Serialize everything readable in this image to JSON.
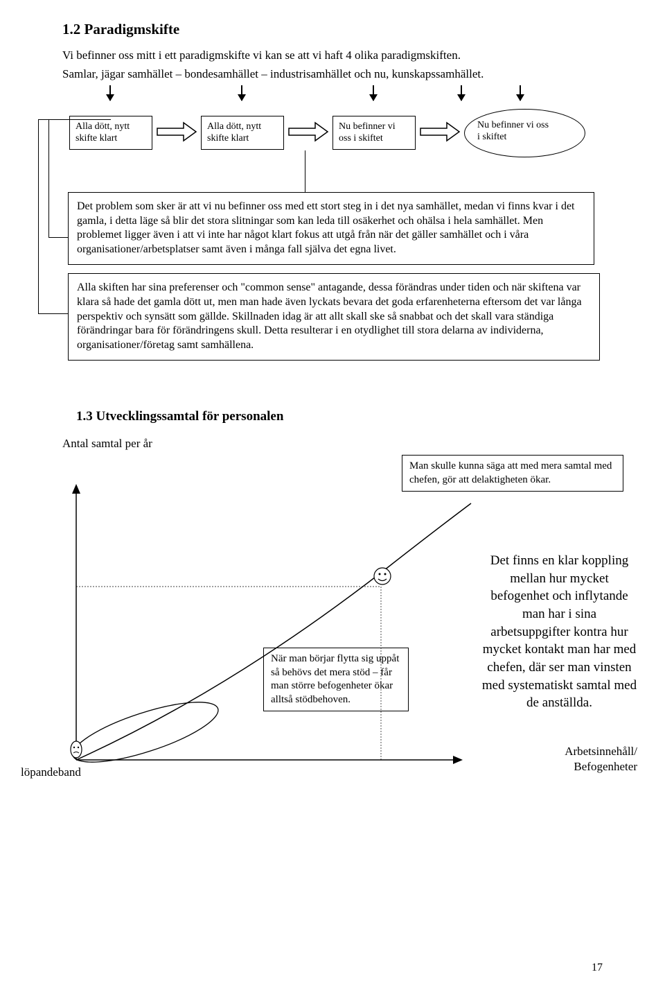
{
  "section12_title": "1.2        Paradigmskifte",
  "section12_para1": "Vi befinner oss mitt i ett paradigmskifte vi kan se att vi haft 4 olika paradigmskiften.",
  "section12_para2": "Samlar, jägar samhället – bondesamhället – industrisamhället och nu, kunskapssamhället.",
  "boxes": {
    "b1": "Alla dött, nytt\nskifte klart",
    "b2": "Alla dött, nytt\nskifte klart",
    "b3": "Nu befinner vi\noss i skiftet",
    "b4": "Nu befinner vi oss\ni skiftet"
  },
  "bigbox1": "Det problem som sker är att vi nu befinner oss med ett stort steg in i det nya samhället, medan vi finns kvar i det gamla, i detta läge så blir det stora slitningar som kan leda till osäkerhet och ohälsa i hela samhället. Men problemet ligger även i att vi inte har något klart fokus att utgå från när det gäller samhället och i våra organisationer/arbetsplatser samt även i många fall själva det egna  livet.",
  "bigbox2": "Alla skiften har sina preferenser och \"common sense\"  antagande, dessa förändras under tiden och när skiftena var klara så hade det gamla dött ut, men man hade även lyckats bevara det goda erfarenheterna eftersom det var långa perspektiv och synsätt som gällde. Skillnaden idag är att allt skall ske så snabbat och det skall vara ständiga förändringar bara för förändringens skull. Detta resulterar i en otydlighet till stora delarna av individerna, organisationer/företag samt samhällena.",
  "section13_title": "1.3 Utvecklingssamtal för personalen",
  "antal_label": "Antal samtal per år",
  "callout_top": "Man skulle kunna säga att med mera samtal med chefen, gör att delaktigheten ökar.",
  "callout_mid": "När man börjar flytta sig uppåt så behövs det mera stöd – får man större befogenheter ökar alltså stödbehoven.",
  "rightbox": "Det finns en klar koppling mellan hur mycket befogenhet och inflytande man har i sina arbetsuppgifter kontra hur mycket kontakt man har med chefen, där ser man vinsten med systematiskt samtal med de anställda.",
  "xlabel1": "Arbetsinnehåll/",
  "xlabel2": "Befogenheter",
  "loplabel": "löpandeband",
  "pagenum": "17",
  "colors": {
    "black": "#000000",
    "white": "#ffffff"
  }
}
